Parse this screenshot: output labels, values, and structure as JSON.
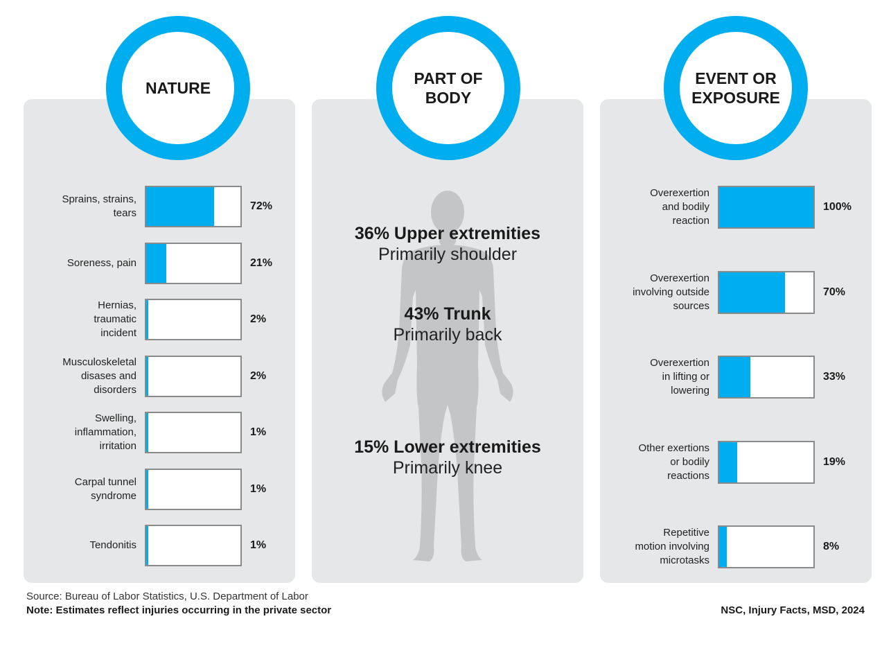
{
  "colors": {
    "accent": "#00aeef",
    "panel": "#e6e7e8"
  },
  "chart_data": [
    {
      "type": "bar",
      "title": "NATURE",
      "categories": [
        "Sprains, strains,\ntears",
        "Soreness, pain",
        "Hernias,\ntraumatic\nincident",
        "Musculoskeletal\ndisases and\ndisorders",
        "Swelling,\ninflammation,\nirritation",
        "Carpal tunnel\nsyndrome",
        "Tendonitis"
      ],
      "values": [
        72,
        21,
        2,
        2,
        1,
        1,
        1
      ],
      "value_labels": [
        "72%",
        "21%",
        "2%",
        "2%",
        "1%",
        "1%",
        "1%"
      ],
      "ylim": [
        0,
        100
      ]
    },
    {
      "type": "bar",
      "title": "EVENT OR\nEXPOSURE",
      "categories": [
        "Overexertion\nand bodily\nreaction",
        "Overexertion\ninvolving outside\nsources",
        "Overexertion\nin lifting or\nlowering",
        "Other exertions\nor bodily\nreactions",
        "Repetitive\nmotion involving\nmicrotasks"
      ],
      "values": [
        100,
        70,
        33,
        19,
        8
      ],
      "value_labels": [
        "100%",
        "70%",
        "33%",
        "19%",
        "8%"
      ],
      "ylim": [
        0,
        100
      ]
    }
  ],
  "part_of_body": {
    "title": "PART OF\nBODY",
    "stats": [
      {
        "value": 36,
        "head": "36% Upper extremities",
        "sub": "Primarily shoulder"
      },
      {
        "value": 43,
        "head": "43% Trunk",
        "sub": "Primarily back"
      },
      {
        "value": 15,
        "head": "15% Lower extremities",
        "sub": "Primarily knee"
      }
    ]
  },
  "footer": {
    "source": "Source: Bureau of Labor Statistics, U.S. Department of Labor",
    "note": "Note: Estimates reflect injuries occurring in the private sector",
    "citation": "NSC, Injury Facts, MSD, 2024"
  }
}
